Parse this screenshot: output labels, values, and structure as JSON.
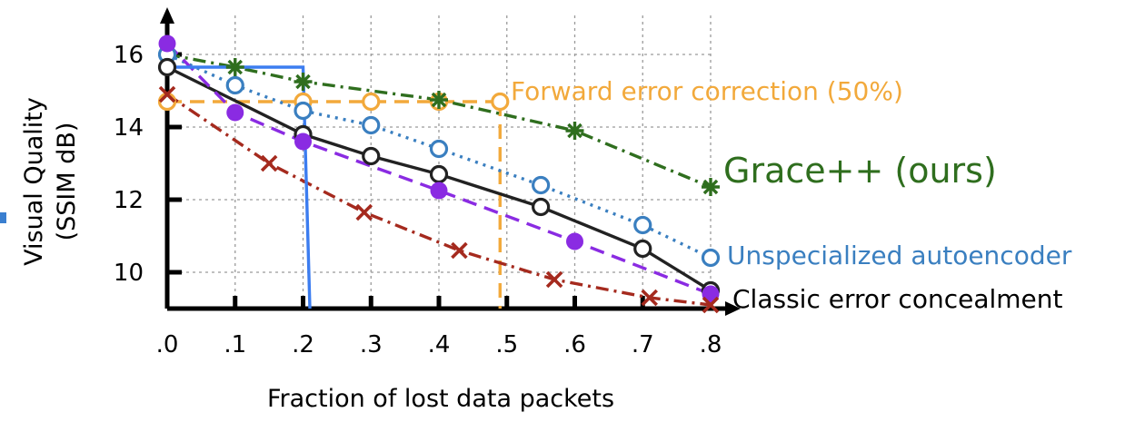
{
  "chart_data": {
    "type": "line",
    "xlabel": "Fraction of lost data packets",
    "ylabel_line1": "Visual Quality",
    "ylabel_line2": "(SSIM dB)",
    "xlim": [
      0,
      0.8
    ],
    "ylim": [
      9,
      17
    ],
    "x_ticks": [
      0,
      0.1,
      0.2,
      0.3,
      0.4,
      0.5,
      0.6,
      0.7,
      0.8
    ],
    "x_tick_labels": [
      ".0",
      ".1",
      ".2",
      ".3",
      ".4",
      ".5",
      ".6",
      ".7",
      ".8"
    ],
    "y_ticks": [
      10,
      12,
      14,
      16
    ],
    "y_tick_labels": [
      "10",
      "12",
      "14",
      "16"
    ],
    "grid": true,
    "series": [
      {
        "name": "Forward error correction (50%)",
        "color": "#f2a93b",
        "marker": "open-circle",
        "line": "dashed",
        "x": [
          0,
          0.2,
          0.3,
          0.4,
          0.49
        ],
        "y": [
          14.7,
          14.7,
          14.7,
          14.7,
          14.7
        ],
        "cliff_to": [
          0.49,
          9.0
        ]
      },
      {
        "name": "Grace++ (ours)",
        "color": "#2f6e1e",
        "marker": "asterisk",
        "line": "dashdot",
        "x": [
          0,
          0.1,
          0.2,
          0.4,
          0.6,
          0.8
        ],
        "y": [
          16.0,
          15.65,
          15.25,
          14.75,
          13.9,
          12.35
        ]
      },
      {
        "name": "Unspecialized autoencoder",
        "color": "#3a7fc0",
        "marker": "open-circle",
        "line": "dotted",
        "x": [
          0,
          0.1,
          0.2,
          0.3,
          0.4,
          0.55,
          0.7,
          0.8
        ],
        "y": [
          16.0,
          15.15,
          14.45,
          14.05,
          13.4,
          12.4,
          11.3,
          10.4
        ]
      },
      {
        "name": "Classic error concealment",
        "color": "#222222",
        "marker": "open-circle",
        "line": "solid",
        "x": [
          0,
          0.2,
          0.3,
          0.4,
          0.55,
          0.7,
          0.8
        ],
        "y": [
          15.65,
          13.8,
          13.2,
          12.7,
          11.8,
          10.65,
          9.5
        ]
      },
      {
        "name": "",
        "color": "#8a2be2",
        "marker": "filled-circle",
        "line": "dashed",
        "x": [
          0,
          0.1,
          0.2,
          0.4,
          0.6,
          0.8
        ],
        "y": [
          16.3,
          14.4,
          13.6,
          12.25,
          10.85,
          9.4
        ]
      },
      {
        "name": "",
        "color": "#a52a1e",
        "marker": "x",
        "line": "dashdot",
        "x": [
          0,
          0.15,
          0.29,
          0.43,
          0.57,
          0.71,
          0.8
        ],
        "y": [
          14.9,
          13.0,
          11.65,
          10.6,
          9.8,
          9.3,
          9.1
        ]
      },
      {
        "name": "",
        "color": "#3c7df0",
        "marker": "none",
        "line": "solid",
        "x": [
          0,
          0.2,
          0.21
        ],
        "y": [
          15.65,
          15.65,
          9.0
        ]
      }
    ]
  }
}
